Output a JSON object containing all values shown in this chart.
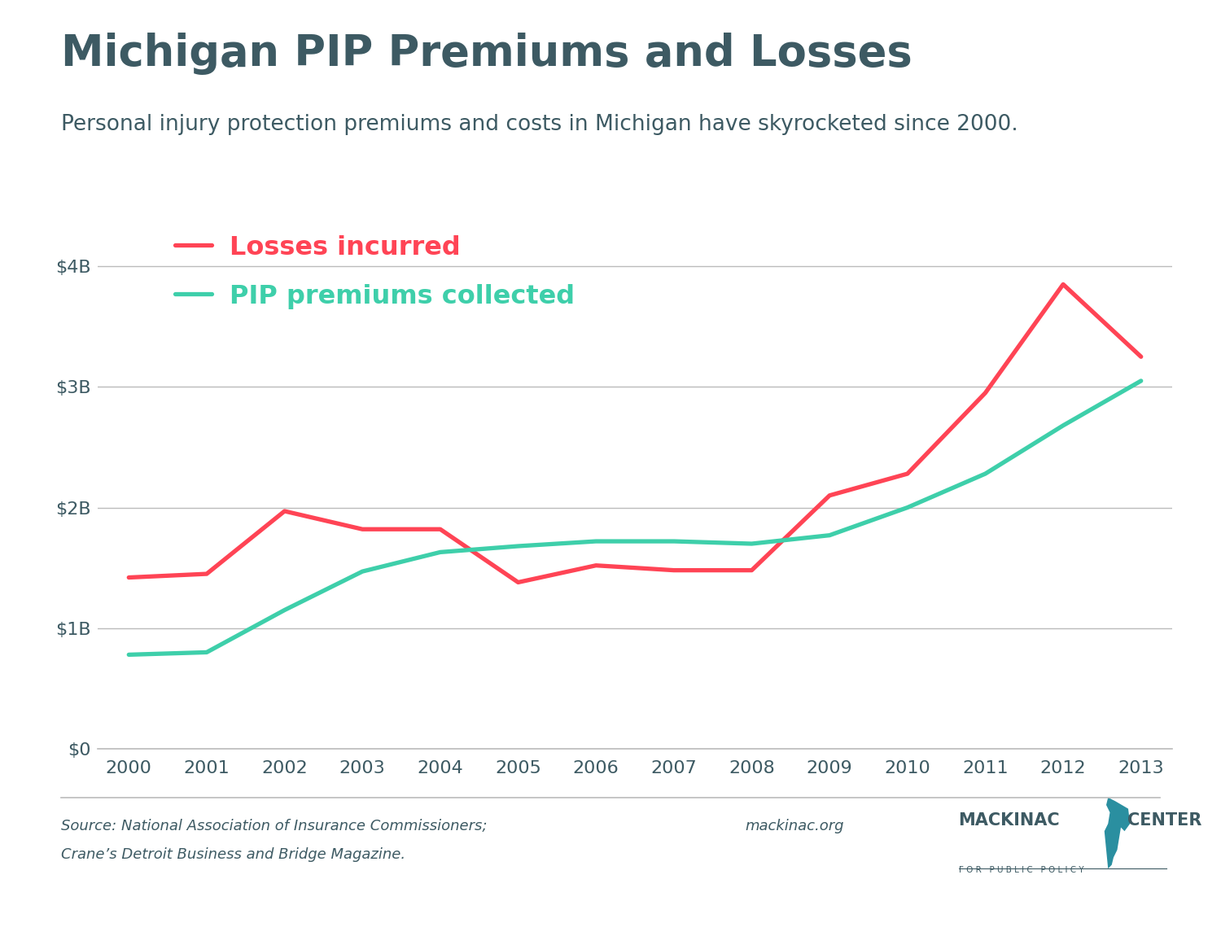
{
  "title": "Michigan PIP Premiums and Losses",
  "subtitle": "Personal injury protection premiums and costs in Michigan have skyrocketed since 2000.",
  "title_color": "#3d5a63",
  "subtitle_color": "#3d5a63",
  "years": [
    2000,
    2001,
    2002,
    2003,
    2004,
    2005,
    2006,
    2007,
    2008,
    2009,
    2010,
    2011,
    2012,
    2013
  ],
  "losses_incurred": [
    1.42,
    1.45,
    1.97,
    1.82,
    1.82,
    1.38,
    1.52,
    1.48,
    1.48,
    2.1,
    2.28,
    2.95,
    3.85,
    3.25
  ],
  "pip_premiums": [
    0.78,
    0.8,
    1.15,
    1.47,
    1.63,
    1.68,
    1.72,
    1.72,
    1.7,
    1.77,
    2.0,
    2.28,
    2.68,
    3.05
  ],
  "losses_color": "#ff4455",
  "premiums_color": "#3ecfaa",
  "losses_label": "Losses incurred",
  "premiums_label": "PIP premiums collected",
  "ylim": [
    0,
    4.5
  ],
  "yticks": [
    0,
    1,
    2,
    3,
    4
  ],
  "ytick_labels": [
    "$0",
    "$1B",
    "$2B",
    "$3B",
    "$4B"
  ],
  "source_text_line1": "Source: National Association of Insurance Commissioners;",
  "source_text_line2": "Crane’s Detroit Business and Bridge Magazine.",
  "website_text": "mackinac.org",
  "background_color": "#ffffff",
  "grid_color": "#bbbbbb",
  "line_width": 3.8,
  "title_fontsize": 38,
  "subtitle_fontsize": 19,
  "tick_fontsize": 16,
  "legend_fontsize": 23,
  "source_fontsize": 13,
  "axis_text_color": "#3d5a63",
  "logo_text_color": "#3d5a63",
  "logo_accent_color": "#2a8fa0"
}
